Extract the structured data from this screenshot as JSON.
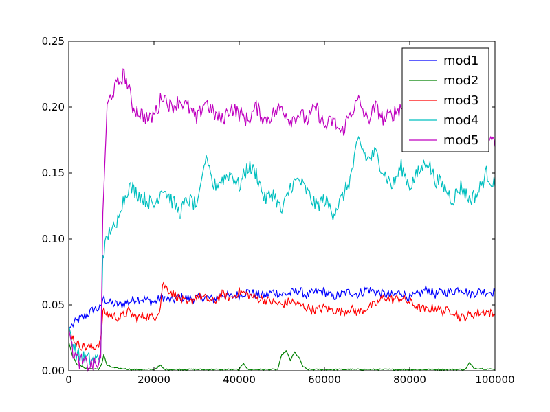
{
  "chart_data": {
    "type": "line",
    "title": "",
    "xlabel": "",
    "ylabel": "",
    "xlim": [
      0,
      100000
    ],
    "ylim": [
      0.0,
      0.25
    ],
    "grid": false,
    "legend_position": "top-right",
    "x_ticks": [
      0,
      20000,
      40000,
      60000,
      80000,
      100000
    ],
    "x_tick_labels": [
      "0",
      "20000",
      "40000",
      "60000",
      "80000",
      "100000"
    ],
    "y_ticks": [
      0.0,
      0.05,
      0.1,
      0.15,
      0.2,
      0.25
    ],
    "y_tick_labels": [
      "0.00",
      "0.05",
      "0.10",
      "0.15",
      "0.20",
      "0.25"
    ],
    "series": [
      {
        "name": "mod1",
        "color": "#0000ff",
        "points": [
          [
            0,
            0.032
          ],
          [
            2000,
            0.038
          ],
          [
            4000,
            0.042
          ],
          [
            6000,
            0.047
          ],
          [
            7500,
            0.047
          ],
          [
            8000,
            0.055
          ],
          [
            10000,
            0.051
          ],
          [
            12000,
            0.05
          ],
          [
            14000,
            0.052
          ],
          [
            16000,
            0.055
          ],
          [
            18000,
            0.054
          ],
          [
            20000,
            0.052
          ],
          [
            22000,
            0.056
          ],
          [
            24000,
            0.053
          ],
          [
            26000,
            0.056
          ],
          [
            28000,
            0.055
          ],
          [
            30000,
            0.055
          ],
          [
            32000,
            0.056
          ],
          [
            34000,
            0.054
          ],
          [
            36000,
            0.058
          ],
          [
            38000,
            0.056
          ],
          [
            40000,
            0.058
          ],
          [
            42000,
            0.06
          ],
          [
            44000,
            0.058
          ],
          [
            46000,
            0.057
          ],
          [
            48000,
            0.06
          ],
          [
            50000,
            0.058
          ],
          [
            52000,
            0.059
          ],
          [
            54000,
            0.061
          ],
          [
            56000,
            0.057
          ],
          [
            58000,
            0.06
          ],
          [
            60000,
            0.06
          ],
          [
            62000,
            0.056
          ],
          [
            64000,
            0.058
          ],
          [
            66000,
            0.06
          ],
          [
            68000,
            0.058
          ],
          [
            70000,
            0.062
          ],
          [
            72000,
            0.06
          ],
          [
            74000,
            0.058
          ],
          [
            76000,
            0.057
          ],
          [
            78000,
            0.06
          ],
          [
            80000,
            0.055
          ],
          [
            82000,
            0.058
          ],
          [
            84000,
            0.062
          ],
          [
            86000,
            0.058
          ],
          [
            88000,
            0.06
          ],
          [
            90000,
            0.06
          ],
          [
            92000,
            0.063
          ],
          [
            94000,
            0.058
          ],
          [
            96000,
            0.06
          ],
          [
            98000,
            0.06
          ],
          [
            100000,
            0.06
          ]
        ]
      },
      {
        "name": "mod2",
        "color": "#008000",
        "points": [
          [
            0,
            0.022
          ],
          [
            1000,
            0.01
          ],
          [
            2000,
            0.005
          ],
          [
            4000,
            0.002
          ],
          [
            7000,
            0.001
          ],
          [
            7800,
            0.006
          ],
          [
            8200,
            0.012
          ],
          [
            9000,
            0.004
          ],
          [
            11000,
            0.002
          ],
          [
            15000,
            0.001
          ],
          [
            20000,
            0.001
          ],
          [
            21500,
            0.004
          ],
          [
            22500,
            0.001
          ],
          [
            30000,
            0.001
          ],
          [
            40000,
            0.001
          ],
          [
            41000,
            0.006
          ],
          [
            42000,
            0.001
          ],
          [
            49000,
            0.001
          ],
          [
            50000,
            0.012
          ],
          [
            51000,
            0.015
          ],
          [
            52000,
            0.008
          ],
          [
            53000,
            0.014
          ],
          [
            54000,
            0.01
          ],
          [
            55000,
            0.003
          ],
          [
            56000,
            0.001
          ],
          [
            70000,
            0.001
          ],
          [
            85000,
            0.001
          ],
          [
            93000,
            0.001
          ],
          [
            94000,
            0.006
          ],
          [
            95000,
            0.002
          ],
          [
            100000,
            0.001
          ]
        ]
      },
      {
        "name": "mod3",
        "color": "#ff0000",
        "points": [
          [
            0,
            0.032
          ],
          [
            1000,
            0.025
          ],
          [
            2000,
            0.02
          ],
          [
            4000,
            0.018
          ],
          [
            6000,
            0.018
          ],
          [
            7500,
            0.022
          ],
          [
            8000,
            0.045
          ],
          [
            10000,
            0.042
          ],
          [
            12000,
            0.04
          ],
          [
            14000,
            0.045
          ],
          [
            16000,
            0.04
          ],
          [
            18000,
            0.042
          ],
          [
            20000,
            0.04
          ],
          [
            21500,
            0.048
          ],
          [
            22000,
            0.066
          ],
          [
            24000,
            0.06
          ],
          [
            26000,
            0.055
          ],
          [
            28000,
            0.05
          ],
          [
            30000,
            0.057
          ],
          [
            32000,
            0.055
          ],
          [
            34000,
            0.052
          ],
          [
            36000,
            0.058
          ],
          [
            38000,
            0.055
          ],
          [
            40000,
            0.06
          ],
          [
            42000,
            0.058
          ],
          [
            44000,
            0.055
          ],
          [
            46000,
            0.054
          ],
          [
            48000,
            0.052
          ],
          [
            50000,
            0.05
          ],
          [
            52000,
            0.053
          ],
          [
            54000,
            0.05
          ],
          [
            56000,
            0.048
          ],
          [
            58000,
            0.046
          ],
          [
            60000,
            0.048
          ],
          [
            62000,
            0.046
          ],
          [
            64000,
            0.045
          ],
          [
            66000,
            0.047
          ],
          [
            68000,
            0.044
          ],
          [
            70000,
            0.048
          ],
          [
            72000,
            0.05
          ],
          [
            74000,
            0.056
          ],
          [
            76000,
            0.054
          ],
          [
            78000,
            0.055
          ],
          [
            80000,
            0.052
          ],
          [
            82000,
            0.048
          ],
          [
            84000,
            0.046
          ],
          [
            86000,
            0.048
          ],
          [
            88000,
            0.045
          ],
          [
            90000,
            0.046
          ],
          [
            92000,
            0.04
          ],
          [
            94000,
            0.042
          ],
          [
            96000,
            0.044
          ],
          [
            98000,
            0.045
          ],
          [
            100000,
            0.042
          ]
        ]
      },
      {
        "name": "mod4",
        "color": "#00bfbf",
        "points": [
          [
            0,
            0.035
          ],
          [
            1000,
            0.02
          ],
          [
            2000,
            0.012
          ],
          [
            4000,
            0.009
          ],
          [
            6000,
            0.008
          ],
          [
            7000,
            0.009
          ],
          [
            7500,
            0.012
          ],
          [
            8000,
            0.088
          ],
          [
            9000,
            0.1
          ],
          [
            10000,
            0.11
          ],
          [
            11000,
            0.105
          ],
          [
            12000,
            0.125
          ],
          [
            13000,
            0.13
          ],
          [
            14000,
            0.14
          ],
          [
            16000,
            0.135
          ],
          [
            18000,
            0.13
          ],
          [
            20000,
            0.125
          ],
          [
            22000,
            0.14
          ],
          [
            24000,
            0.13
          ],
          [
            26000,
            0.12
          ],
          [
            28000,
            0.13
          ],
          [
            30000,
            0.125
          ],
          [
            32000,
            0.16
          ],
          [
            34000,
            0.14
          ],
          [
            36000,
            0.145
          ],
          [
            38000,
            0.15
          ],
          [
            40000,
            0.14
          ],
          [
            42000,
            0.155
          ],
          [
            44000,
            0.15
          ],
          [
            46000,
            0.13
          ],
          [
            48000,
            0.135
          ],
          [
            50000,
            0.12
          ],
          [
            52000,
            0.14
          ],
          [
            54000,
            0.145
          ],
          [
            56000,
            0.135
          ],
          [
            58000,
            0.125
          ],
          [
            60000,
            0.13
          ],
          [
            62000,
            0.12
          ],
          [
            64000,
            0.13
          ],
          [
            66000,
            0.145
          ],
          [
            68000,
            0.175
          ],
          [
            70000,
            0.16
          ],
          [
            72000,
            0.165
          ],
          [
            74000,
            0.15
          ],
          [
            76000,
            0.14
          ],
          [
            78000,
            0.155
          ],
          [
            80000,
            0.14
          ],
          [
            82000,
            0.15
          ],
          [
            84000,
            0.16
          ],
          [
            86000,
            0.145
          ],
          [
            88000,
            0.14
          ],
          [
            90000,
            0.13
          ],
          [
            92000,
            0.14
          ],
          [
            94000,
            0.13
          ],
          [
            96000,
            0.135
          ],
          [
            98000,
            0.15
          ],
          [
            100000,
            0.14
          ]
        ]
      },
      {
        "name": "mod5",
        "color": "#bf00bf",
        "points": [
          [
            0,
            0.032
          ],
          [
            1000,
            0.015
          ],
          [
            2000,
            0.008
          ],
          [
            4000,
            0.005
          ],
          [
            6000,
            0.004
          ],
          [
            7000,
            0.005
          ],
          [
            7500,
            0.01
          ],
          [
            8000,
            0.12
          ],
          [
            9000,
            0.2
          ],
          [
            10000,
            0.21
          ],
          [
            11000,
            0.215
          ],
          [
            12000,
            0.22
          ],
          [
            13000,
            0.225
          ],
          [
            14000,
            0.215
          ],
          [
            15000,
            0.2
          ],
          [
            17000,
            0.195
          ],
          [
            19000,
            0.19
          ],
          [
            21000,
            0.2
          ],
          [
            22000,
            0.21
          ],
          [
            24000,
            0.2
          ],
          [
            26000,
            0.205
          ],
          [
            28000,
            0.2
          ],
          [
            30000,
            0.19
          ],
          [
            32000,
            0.205
          ],
          [
            34000,
            0.195
          ],
          [
            36000,
            0.19
          ],
          [
            38000,
            0.2
          ],
          [
            40000,
            0.195
          ],
          [
            42000,
            0.19
          ],
          [
            44000,
            0.2
          ],
          [
            46000,
            0.19
          ],
          [
            48000,
            0.195
          ],
          [
            50000,
            0.2
          ],
          [
            52000,
            0.19
          ],
          [
            54000,
            0.195
          ],
          [
            56000,
            0.19
          ],
          [
            58000,
            0.2
          ],
          [
            60000,
            0.185
          ],
          [
            62000,
            0.19
          ],
          [
            64000,
            0.18
          ],
          [
            66000,
            0.195
          ],
          [
            68000,
            0.205
          ],
          [
            70000,
            0.19
          ],
          [
            72000,
            0.2
          ],
          [
            74000,
            0.19
          ],
          [
            76000,
            0.195
          ],
          [
            78000,
            0.2
          ],
          [
            80000,
            0.195
          ],
          [
            82000,
            0.18
          ],
          [
            84000,
            0.185
          ],
          [
            86000,
            0.18
          ],
          [
            88000,
            0.175
          ],
          [
            90000,
            0.18
          ],
          [
            92000,
            0.185
          ],
          [
            94000,
            0.18
          ],
          [
            96000,
            0.175
          ],
          [
            98000,
            0.18
          ],
          [
            100000,
            0.17
          ]
        ]
      }
    ]
  }
}
